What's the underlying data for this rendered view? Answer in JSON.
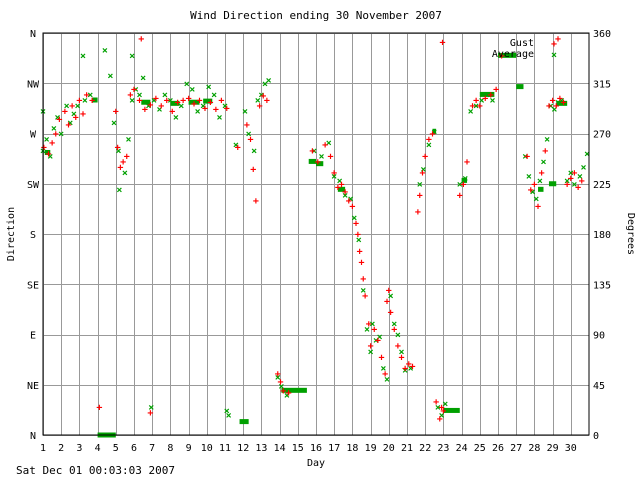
{
  "footer": "Sat Dec 01 00:03:03 2007",
  "colors": {
    "gust": "#ff0000",
    "average": "#00a000",
    "grid": "#999999"
  },
  "chart_data": {
    "type": "scatter",
    "title": "Wind Direction ending 30 November 2007",
    "xlabel": "Day",
    "ylabel_left": "Direction",
    "ylabel_right": "Degrees",
    "xlim": [
      1,
      31
    ],
    "ylim": [
      0,
      360
    ],
    "x_ticks": [
      1,
      2,
      3,
      4,
      5,
      6,
      7,
      8,
      9,
      10,
      11,
      12,
      13,
      14,
      15,
      16,
      17,
      18,
      19,
      20,
      21,
      22,
      23,
      24,
      25,
      26,
      27,
      28,
      29,
      30
    ],
    "y_ticks_left": [
      {
        "v": 0,
        "t": "N"
      },
      {
        "v": 45,
        "t": "NE"
      },
      {
        "v": 90,
        "t": "E"
      },
      {
        "v": 135,
        "t": "SE"
      },
      {
        "v": 180,
        "t": "S"
      },
      {
        "v": 225,
        "t": "SW"
      },
      {
        "v": 270,
        "t": "W"
      },
      {
        "v": 315,
        "t": "NW"
      },
      {
        "v": 360,
        "t": "N"
      }
    ],
    "y_ticks_right": [
      0,
      45,
      90,
      135,
      180,
      225,
      270,
      315,
      360
    ],
    "grid": true,
    "legend_position": "top-right",
    "series": [
      {
        "name": "Gust",
        "marker": "+",
        "points": [
          [
            1.05,
            258
          ],
          [
            1.3,
            252
          ],
          [
            1.5,
            262
          ],
          [
            1.7,
            270
          ],
          [
            1.9,
            283
          ],
          [
            2.2,
            290
          ],
          [
            2.4,
            278
          ],
          [
            2.6,
            295
          ],
          [
            2.8,
            285
          ],
          [
            3.0,
            300
          ],
          [
            3.2,
            288
          ],
          [
            3.4,
            305
          ],
          [
            3.7,
            300
          ],
          [
            5.0,
            290
          ],
          [
            5.1,
            258
          ],
          [
            5.25,
            240
          ],
          [
            5.4,
            245
          ],
          [
            5.6,
            250
          ],
          [
            5.8,
            305
          ],
          [
            6.0,
            310
          ],
          [
            6.3,
            300
          ],
          [
            6.6,
            292
          ],
          [
            6.9,
            296
          ],
          [
            7.2,
            302
          ],
          [
            7.5,
            295
          ],
          [
            7.8,
            300
          ],
          [
            8.1,
            290
          ],
          [
            8.4,
            298
          ],
          [
            8.7,
            300
          ],
          [
            9.0,
            302
          ],
          [
            9.3,
            297
          ],
          [
            9.6,
            300
          ],
          [
            9.9,
            293
          ],
          [
            10.2,
            298
          ],
          [
            10.5,
            292
          ],
          [
            10.8,
            300
          ],
          [
            11.1,
            293
          ],
          [
            11.7,
            258
          ],
          [
            12.2,
            278
          ],
          [
            12.4,
            265
          ],
          [
            12.55,
            238
          ],
          [
            12.7,
            210
          ],
          [
            12.9,
            295
          ],
          [
            13.1,
            304
          ],
          [
            13.3,
            300
          ],
          [
            13.9,
            55
          ],
          [
            14.05,
            48
          ],
          [
            14.2,
            40
          ],
          [
            14.5,
            38
          ],
          [
            15.8,
            255
          ],
          [
            16.1,
            245
          ],
          [
            16.5,
            260
          ],
          [
            16.8,
            250
          ],
          [
            17.0,
            235
          ],
          [
            17.2,
            222
          ],
          [
            17.4,
            225
          ],
          [
            17.6,
            218
          ],
          [
            17.8,
            210
          ],
          [
            18.0,
            205
          ],
          [
            18.2,
            190
          ],
          [
            18.3,
            180
          ],
          [
            18.4,
            165
          ],
          [
            18.5,
            155
          ],
          [
            18.6,
            140
          ],
          [
            18.7,
            125
          ],
          [
            18.9,
            100
          ],
          [
            19.0,
            80
          ],
          [
            19.2,
            95
          ],
          [
            19.4,
            85
          ],
          [
            19.6,
            70
          ],
          [
            19.8,
            55
          ],
          [
            19.9,
            120
          ],
          [
            20.0,
            130
          ],
          [
            20.1,
            110
          ],
          [
            20.3,
            95
          ],
          [
            20.5,
            80
          ],
          [
            20.7,
            70
          ],
          [
            20.9,
            60
          ],
          [
            21.1,
            64
          ],
          [
            21.3,
            62
          ],
          [
            21.6,
            200
          ],
          [
            21.7,
            215
          ],
          [
            21.85,
            235
          ],
          [
            22.0,
            250
          ],
          [
            22.2,
            265
          ],
          [
            22.4,
            270
          ],
          [
            22.6,
            30
          ],
          [
            22.8,
            15
          ],
          [
            22.9,
            25
          ],
          [
            23.0,
            22
          ],
          [
            23.9,
            215
          ],
          [
            24.1,
            225
          ],
          [
            24.3,
            245
          ],
          [
            24.6,
            295
          ],
          [
            24.8,
            300
          ],
          [
            25.0,
            295
          ],
          [
            25.3,
            302
          ],
          [
            25.6,
            305
          ],
          [
            25.9,
            310
          ],
          [
            27.6,
            250
          ],
          [
            27.8,
            220
          ],
          [
            28.0,
            225
          ],
          [
            28.2,
            205
          ],
          [
            28.4,
            235
          ],
          [
            28.6,
            255
          ],
          [
            28.8,
            295
          ],
          [
            29.0,
            300
          ],
          [
            29.2,
            295
          ],
          [
            29.4,
            302
          ],
          [
            29.6,
            298
          ],
          [
            29.8,
            225
          ],
          [
            30.0,
            230
          ],
          [
            30.2,
            235
          ],
          [
            30.4,
            222
          ],
          [
            30.6,
            228
          ],
          [
            22.95,
            352
          ],
          [
            26.2,
            340
          ],
          [
            29.3,
            355
          ],
          [
            4.1,
            25
          ],
          [
            6.4,
            355
          ],
          [
            6.9,
            20
          ]
        ]
      },
      {
        "name": "Average",
        "marker": "x",
        "points": [
          [
            1.0,
            255
          ],
          [
            1.0,
            290
          ],
          [
            1.2,
            265
          ],
          [
            1.4,
            250
          ],
          [
            1.6,
            275
          ],
          [
            1.8,
            285
          ],
          [
            2.0,
            270
          ],
          [
            2.3,
            295
          ],
          [
            2.5,
            280
          ],
          [
            2.7,
            288
          ],
          [
            2.9,
            295
          ],
          [
            3.3,
            300
          ],
          [
            3.6,
            305
          ],
          [
            3.2,
            340
          ],
          [
            4.4,
            345
          ],
          [
            4.9,
            280
          ],
          [
            5.15,
            255
          ],
          [
            5.2,
            220
          ],
          [
            5.5,
            235
          ],
          [
            5.7,
            265
          ],
          [
            5.9,
            300
          ],
          [
            6.1,
            310
          ],
          [
            6.3,
            305
          ],
          [
            6.5,
            320
          ],
          [
            6.8,
            295
          ],
          [
            7.1,
            300
          ],
          [
            7.4,
            292
          ],
          [
            7.7,
            305
          ],
          [
            8.0,
            300
          ],
          [
            8.3,
            285
          ],
          [
            8.6,
            295
          ],
          [
            8.9,
            315
          ],
          [
            9.2,
            310
          ],
          [
            9.5,
            290
          ],
          [
            9.8,
            295
          ],
          [
            10.1,
            312
          ],
          [
            10.4,
            305
          ],
          [
            10.7,
            285
          ],
          [
            11.0,
            295
          ],
          [
            11.6,
            260
          ],
          [
            12.1,
            290
          ],
          [
            12.3,
            270
          ],
          [
            12.6,
            255
          ],
          [
            12.8,
            300
          ],
          [
            13.0,
            305
          ],
          [
            13.2,
            315
          ],
          [
            13.4,
            318
          ],
          [
            13.9,
            52
          ],
          [
            14.1,
            44
          ],
          [
            14.4,
            36
          ],
          [
            15.9,
            255
          ],
          [
            16.3,
            250
          ],
          [
            16.7,
            262
          ],
          [
            17.0,
            232
          ],
          [
            17.3,
            228
          ],
          [
            17.6,
            215
          ],
          [
            17.9,
            212
          ],
          [
            18.1,
            195
          ],
          [
            18.35,
            175
          ],
          [
            18.6,
            130
          ],
          [
            18.8,
            95
          ],
          [
            19.0,
            75
          ],
          [
            19.1,
            100
          ],
          [
            19.3,
            85
          ],
          [
            19.5,
            88
          ],
          [
            19.7,
            60
          ],
          [
            19.9,
            50
          ],
          [
            20.1,
            125
          ],
          [
            20.3,
            100
          ],
          [
            20.5,
            90
          ],
          [
            20.7,
            75
          ],
          [
            20.9,
            58
          ],
          [
            21.2,
            60
          ],
          [
            21.7,
            225
          ],
          [
            21.9,
            238
          ],
          [
            22.2,
            260
          ],
          [
            22.5,
            272
          ],
          [
            22.7,
            25
          ],
          [
            22.9,
            18
          ],
          [
            23.1,
            28
          ],
          [
            23.9,
            225
          ],
          [
            24.2,
            230
          ],
          [
            24.5,
            290
          ],
          [
            24.8,
            295
          ],
          [
            25.1,
            300
          ],
          [
            25.4,
            305
          ],
          [
            25.7,
            300
          ],
          [
            27.5,
            250
          ],
          [
            27.7,
            232
          ],
          [
            27.9,
            218
          ],
          [
            28.1,
            212
          ],
          [
            28.3,
            228
          ],
          [
            28.5,
            245
          ],
          [
            28.7,
            265
          ],
          [
            28.9,
            295
          ],
          [
            29.1,
            292
          ],
          [
            29.3,
            298
          ],
          [
            29.5,
            300
          ],
          [
            29.8,
            228
          ],
          [
            30.0,
            235
          ],
          [
            30.2,
            225
          ],
          [
            30.5,
            232
          ],
          [
            30.7,
            240
          ],
          [
            30.9,
            252
          ],
          [
            4.7,
            322
          ],
          [
            5.9,
            340
          ],
          [
            6.95,
            25
          ],
          [
            11.1,
            22
          ],
          [
            11.2,
            18
          ]
        ]
      },
      {
        "name": "Average-bars",
        "marker": "bar",
        "segments": [
          [
            1.1,
            1.4,
            253
          ],
          [
            3.7,
            4.0,
            300
          ],
          [
            6.4,
            6.9,
            298
          ],
          [
            8.0,
            8.5,
            297
          ],
          [
            9.0,
            9.6,
            298
          ],
          [
            9.8,
            10.3,
            299
          ],
          [
            4.0,
            5.0,
            0
          ],
          [
            11.8,
            12.3,
            12
          ],
          [
            14.1,
            15.5,
            40
          ],
          [
            15.6,
            16.0,
            245
          ],
          [
            16.0,
            16.4,
            243
          ],
          [
            17.2,
            17.6,
            220
          ],
          [
            22.4,
            22.6,
            272
          ],
          [
            23.0,
            23.9,
            22
          ],
          [
            24.0,
            24.3,
            228
          ],
          [
            25.0,
            25.8,
            305
          ],
          [
            26.0,
            27.0,
            340
          ],
          [
            27.0,
            27.4,
            312
          ],
          [
            28.2,
            28.5,
            220
          ],
          [
            28.8,
            29.2,
            225
          ],
          [
            29.2,
            29.8,
            297
          ]
        ]
      }
    ]
  }
}
